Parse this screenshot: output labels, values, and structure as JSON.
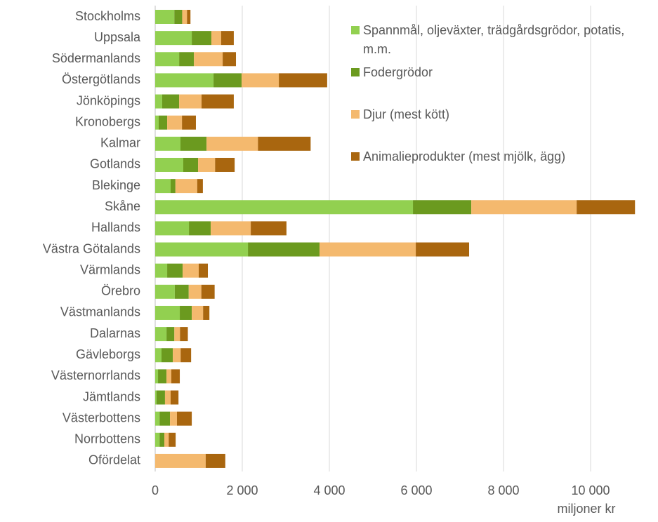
{
  "chart_data": {
    "type": "bar",
    "orientation": "horizontal",
    "stacked": true,
    "x_label": "miljoner kr",
    "categories": [
      "Stockholms",
      "Uppsala",
      "Södermanlands",
      "Östergötlands",
      "Jönköpings",
      "Kronobergs",
      "Kalmar",
      "Gotlands",
      "Blekinge",
      "Skåne",
      "Hallands",
      "Västra Götalands",
      "Värmlands",
      "Örebro",
      "Västmanlands",
      "Dalarnas",
      "Gävleborgs",
      "Västernorrlands",
      "Jämtlands",
      "Västerbottens",
      "Norrbottens",
      "Ofördelat"
    ],
    "series": [
      {
        "name": "Spannmål, oljeväxter, trädgårdsgrödor, potatis, m.m.",
        "color": "#92d050",
        "values": [
          440,
          840,
          550,
          1340,
          160,
          80,
          580,
          645,
          355,
          5920,
          775,
          2130,
          275,
          450,
          565,
          260,
          145,
          65,
          30,
          100,
          100,
          0
        ]
      },
      {
        "name": "Fodergrödor",
        "color": "#6b9a1f",
        "values": [
          180,
          450,
          340,
          645,
          390,
          195,
          600,
          340,
          110,
          1340,
          500,
          1645,
          355,
          320,
          275,
          180,
          260,
          195,
          195,
          240,
          110,
          0
        ]
      },
      {
        "name": "Djur (mest kött)",
        "color": "#f4b96e",
        "values": [
          110,
          225,
          660,
          855,
          515,
          340,
          1180,
          390,
          500,
          2420,
          920,
          2210,
          370,
          290,
          260,
          130,
          180,
          110,
          130,
          160,
          100,
          1160
        ]
      },
      {
        "name": "Animalieprodukter (mest mjölk, ägg)",
        "color": "#a9660f",
        "values": [
          80,
          290,
          305,
          1110,
          740,
          320,
          1210,
          450,
          130,
          1340,
          820,
          1225,
          210,
          305,
          145,
          180,
          240,
          195,
          180,
          340,
          160,
          450
        ]
      }
    ],
    "xlim": [
      0,
      11000
    ],
    "xticks": [
      0,
      {
        "value": 2000,
        "label": "2 000"
      },
      {
        "value": 4000,
        "label": "4 000"
      },
      {
        "value": 6000,
        "label": "6 000"
      },
      {
        "value": 8000,
        "label": "8 000"
      },
      {
        "value": 10000,
        "label": "10 000"
      }
    ],
    "grid": true,
    "legend": "top-right"
  }
}
